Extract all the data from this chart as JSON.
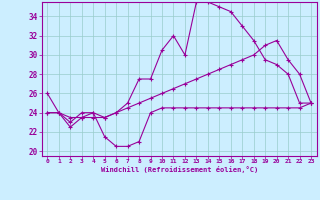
{
  "xlabel": "Windchill (Refroidissement éolien,°C)",
  "bg_color": "#cceeff",
  "grid_color": "#99cccc",
  "line_color": "#990099",
  "x_ticks": [
    0,
    1,
    2,
    3,
    4,
    5,
    6,
    7,
    8,
    9,
    10,
    11,
    12,
    13,
    14,
    15,
    16,
    17,
    18,
    19,
    20,
    21,
    22,
    23
  ],
  "y_ticks": [
    20,
    22,
    24,
    26,
    28,
    30,
    32,
    34
  ],
  "xlim": [
    -0.5,
    23.5
  ],
  "ylim": [
    19.5,
    35.5
  ],
  "series": [
    [
      26.0,
      24.0,
      22.5,
      23.5,
      24.0,
      21.5,
      20.5,
      20.5,
      21.0,
      24.0,
      24.5,
      24.5,
      24.5,
      24.5,
      24.5,
      24.5,
      24.5,
      24.5,
      24.5,
      24.5,
      24.5,
      24.5,
      24.5,
      25.0
    ],
    [
      24.0,
      24.0,
      23.0,
      24.0,
      24.0,
      23.5,
      24.0,
      25.0,
      27.5,
      27.5,
      30.5,
      32.0,
      30.0,
      35.5,
      35.5,
      35.0,
      34.5,
      33.0,
      31.5,
      29.5,
      29.0,
      28.0,
      25.0,
      25.0
    ],
    [
      24.0,
      24.0,
      23.5,
      23.5,
      23.5,
      23.5,
      24.0,
      24.5,
      25.0,
      25.5,
      26.0,
      26.5,
      27.0,
      27.5,
      28.0,
      28.5,
      29.0,
      29.5,
      30.0,
      31.0,
      31.5,
      29.5,
      28.0,
      25.0
    ]
  ]
}
